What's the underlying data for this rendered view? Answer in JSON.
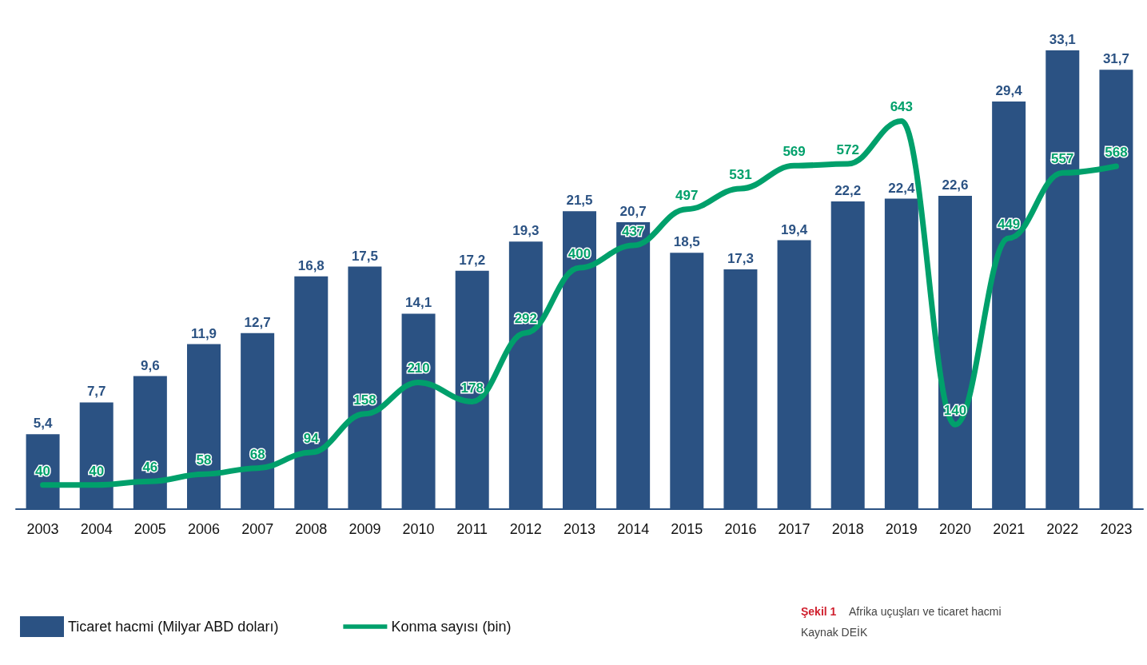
{
  "chart_data": {
    "type": "bar",
    "categories": [
      "2003",
      "2004",
      "2005",
      "2006",
      "2007",
      "2008",
      "2009",
      "2010",
      "2011",
      "2012",
      "2013",
      "2014",
      "2015",
      "2016",
      "2017",
      "2018",
      "2019",
      "2020",
      "2021",
      "2022",
      "2023"
    ],
    "series": [
      {
        "name": "Ticaret hacmi (Milyar ABD doları)",
        "color": "#2b5283",
        "values": [
          5.4,
          7.7,
          9.6,
          11.9,
          12.7,
          16.8,
          17.5,
          14.1,
          17.2,
          19.3,
          21.5,
          20.7,
          18.5,
          17.3,
          19.4,
          22.2,
          22.4,
          22.6,
          29.4,
          33.1,
          31.7
        ],
        "value_labels": [
          "5,4",
          "7,7",
          "9,6",
          "11,9",
          "12,7",
          "16,8",
          "17,5",
          "14,1",
          "17,2",
          "19,3",
          "21,5",
          "20,7",
          "18,5",
          "17,3",
          "19,4",
          "22,2",
          "22,4",
          "22,6",
          "29,4",
          "33,1",
          "31,7"
        ]
      },
      {
        "name": "Konma sayısı (bin)",
        "type": "line",
        "axis": "y2",
        "marker": "none",
        "color": "#00a06b",
        "values": [
          40,
          40,
          46,
          58,
          68,
          94,
          158,
          210,
          178,
          292,
          400,
          437,
          497,
          531,
          569,
          572,
          643,
          140,
          449,
          557,
          568
        ],
        "value_labels": [
          "40",
          "40",
          "46",
          "58",
          "68",
          "94",
          "158",
          "210",
          "178",
          "292",
          "400",
          "437",
          "497",
          "531",
          "569",
          "572",
          "643",
          "140",
          "449",
          "557",
          "568"
        ]
      }
    ],
    "legend": "bottom left",
    "tick_labels": "x",
    "annotations": [
      "Şekil 1",
      "Afrika uçuşları ve ticaret hacmi",
      "Kaynak DEİK"
    ]
  }
}
